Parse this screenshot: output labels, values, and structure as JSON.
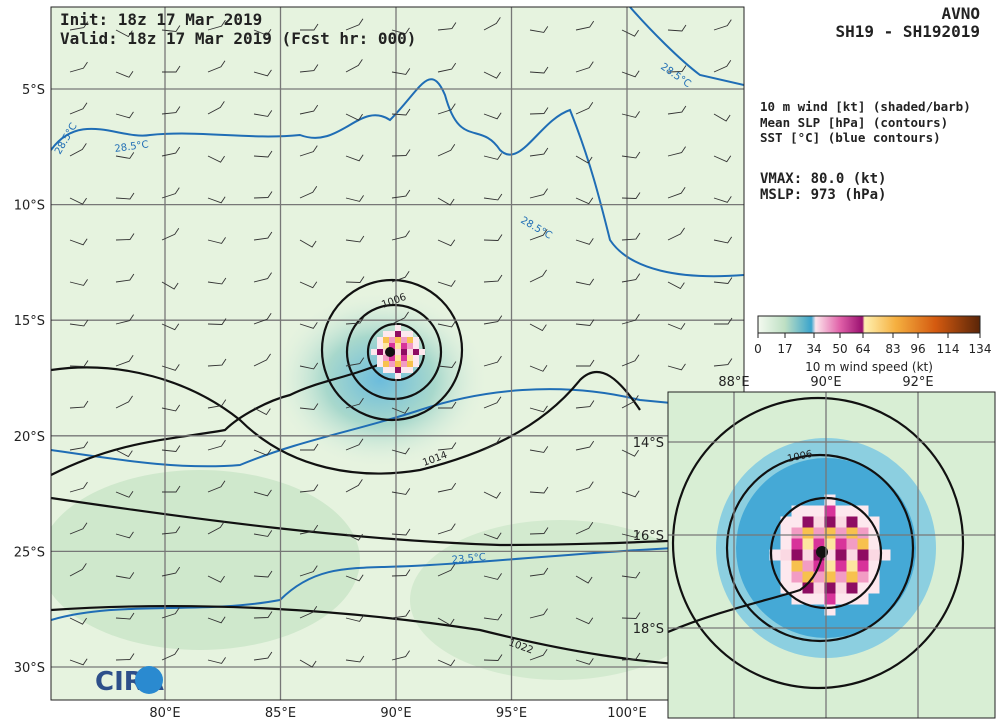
{
  "header": {
    "init": "Init:  18z 17 Mar 2019",
    "valid": "Valid: 18z 17 Mar 2019 (Fcst hr: 000)",
    "model": "AVNO",
    "storm": "SH19 - SH192019"
  },
  "legend": {
    "lines": [
      "10 m wind [kt] (shaded/barb)",
      "Mean SLP [hPa] (contours)",
      "SST [°C] (blue contours)"
    ],
    "vmax": "VMAX:  80.0 (kt)",
    "mslp": "MSLP:  973 (hPa)",
    "colorbar_ticks": [
      0,
      17,
      34,
      50,
      64,
      83,
      96,
      114,
      134
    ],
    "colorbar_label": "10 m wind speed (kt)"
  },
  "map": {
    "lat_labels": [
      "5°S",
      "10°S",
      "15°S",
      "20°S",
      "25°S",
      "30°S"
    ],
    "lon_labels": [
      "80°E",
      "85°E",
      "90°E",
      "95°E",
      "100°E"
    ],
    "contour_labels": [
      "1006",
      "1014",
      "1022",
      "28.5°C",
      "28.5°C",
      "28.5°C",
      "28.5°C",
      "23.5°C"
    ],
    "logo": "CIRA"
  },
  "inset": {
    "lon_labels": [
      "88°E",
      "90°E",
      "92°E"
    ],
    "lat_labels": [
      "14°S",
      "16°S",
      "18°S"
    ],
    "contour_label": "1006"
  }
}
